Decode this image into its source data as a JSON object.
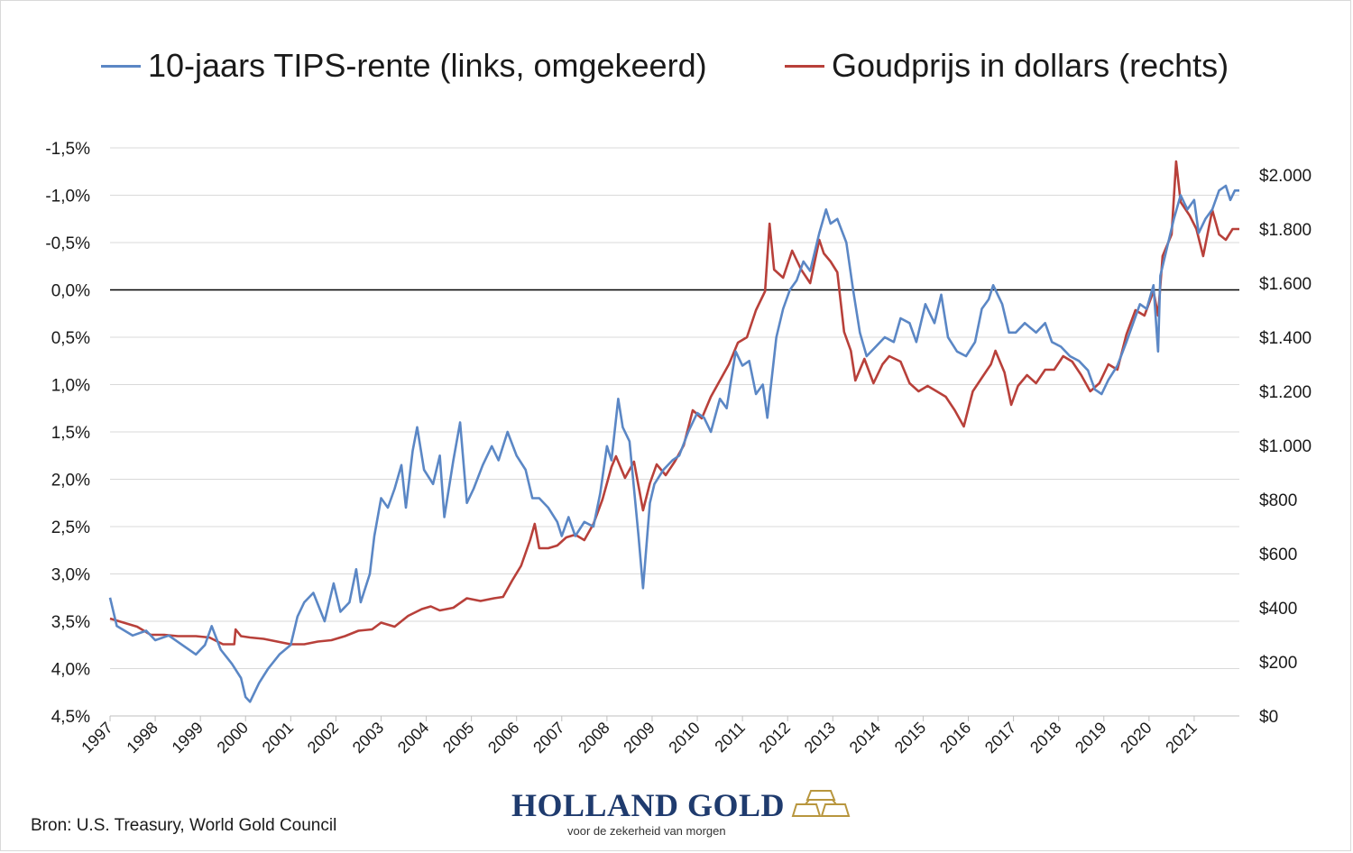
{
  "chart_data": {
    "type": "line",
    "title": "",
    "legend_position": "top",
    "grid": true,
    "series": [
      {
        "name": "10-jaars TIPS-rente (links, omgekeerd)",
        "axis": "left",
        "color": "#5b87c5",
        "points": [
          [
            1997.0,
            3.25
          ],
          [
            1997.15,
            3.55
          ],
          [
            1997.5,
            3.65
          ],
          [
            1997.8,
            3.6
          ],
          [
            1998.0,
            3.7
          ],
          [
            1998.3,
            3.65
          ],
          [
            1998.6,
            3.75
          ],
          [
            1998.9,
            3.85
          ],
          [
            1999.1,
            3.75
          ],
          [
            1999.25,
            3.55
          ],
          [
            1999.45,
            3.8
          ],
          [
            1999.7,
            3.95
          ],
          [
            1999.9,
            4.1
          ],
          [
            2000.0,
            4.3
          ],
          [
            2000.1,
            4.35
          ],
          [
            2000.3,
            4.15
          ],
          [
            2000.5,
            4.0
          ],
          [
            2000.75,
            3.85
          ],
          [
            2001.0,
            3.75
          ],
          [
            2001.15,
            3.45
          ],
          [
            2001.3,
            3.3
          ],
          [
            2001.5,
            3.2
          ],
          [
            2001.75,
            3.5
          ],
          [
            2001.95,
            3.1
          ],
          [
            2002.1,
            3.4
          ],
          [
            2002.3,
            3.3
          ],
          [
            2002.45,
            2.95
          ],
          [
            2002.55,
            3.3
          ],
          [
            2002.75,
            3.0
          ],
          [
            2002.85,
            2.6
          ],
          [
            2003.0,
            2.2
          ],
          [
            2003.15,
            2.3
          ],
          [
            2003.3,
            2.1
          ],
          [
            2003.45,
            1.85
          ],
          [
            2003.55,
            2.3
          ],
          [
            2003.7,
            1.7
          ],
          [
            2003.8,
            1.45
          ],
          [
            2003.95,
            1.9
          ],
          [
            2004.15,
            2.05
          ],
          [
            2004.3,
            1.75
          ],
          [
            2004.4,
            2.4
          ],
          [
            2004.6,
            1.8
          ],
          [
            2004.75,
            1.4
          ],
          [
            2004.9,
            2.25
          ],
          [
            2005.05,
            2.1
          ],
          [
            2005.25,
            1.85
          ],
          [
            2005.45,
            1.65
          ],
          [
            2005.6,
            1.8
          ],
          [
            2005.8,
            1.5
          ],
          [
            2006.0,
            1.75
          ],
          [
            2006.2,
            1.9
          ],
          [
            2006.35,
            2.2
          ],
          [
            2006.5,
            2.2
          ],
          [
            2006.7,
            2.3
          ],
          [
            2006.9,
            2.45
          ],
          [
            2007.0,
            2.6
          ],
          [
            2007.15,
            2.4
          ],
          [
            2007.3,
            2.6
          ],
          [
            2007.5,
            2.45
          ],
          [
            2007.7,
            2.5
          ],
          [
            2007.85,
            2.15
          ],
          [
            2008.0,
            1.65
          ],
          [
            2008.1,
            1.8
          ],
          [
            2008.25,
            1.15
          ],
          [
            2008.35,
            1.45
          ],
          [
            2008.5,
            1.6
          ],
          [
            2008.7,
            2.6
          ],
          [
            2008.8,
            3.15
          ],
          [
            2008.95,
            2.25
          ],
          [
            2009.05,
            2.05
          ],
          [
            2009.25,
            1.9
          ],
          [
            2009.45,
            1.8
          ],
          [
            2009.6,
            1.75
          ],
          [
            2009.8,
            1.5
          ],
          [
            2010.0,
            1.3
          ],
          [
            2010.15,
            1.35
          ],
          [
            2010.3,
            1.5
          ],
          [
            2010.5,
            1.15
          ],
          [
            2010.65,
            1.25
          ],
          [
            2010.85,
            0.65
          ],
          [
            2011.0,
            0.8
          ],
          [
            2011.15,
            0.75
          ],
          [
            2011.3,
            1.1
          ],
          [
            2011.45,
            1.0
          ],
          [
            2011.55,
            1.35
          ],
          [
            2011.75,
            0.5
          ],
          [
            2011.9,
            0.2
          ],
          [
            2012.05,
            0.0
          ],
          [
            2012.2,
            -0.1
          ],
          [
            2012.35,
            -0.3
          ],
          [
            2012.5,
            -0.2
          ],
          [
            2012.7,
            -0.6
          ],
          [
            2012.85,
            -0.85
          ],
          [
            2012.95,
            -0.7
          ],
          [
            2013.1,
            -0.75
          ],
          [
            2013.3,
            -0.5
          ],
          [
            2013.45,
            0.0
          ],
          [
            2013.6,
            0.45
          ],
          [
            2013.75,
            0.7
          ],
          [
            2013.95,
            0.6
          ],
          [
            2014.15,
            0.5
          ],
          [
            2014.35,
            0.55
          ],
          [
            2014.5,
            0.3
          ],
          [
            2014.7,
            0.35
          ],
          [
            2014.85,
            0.55
          ],
          [
            2015.05,
            0.15
          ],
          [
            2015.25,
            0.35
          ],
          [
            2015.4,
            0.05
          ],
          [
            2015.55,
            0.5
          ],
          [
            2015.75,
            0.65
          ],
          [
            2015.95,
            0.7
          ],
          [
            2016.15,
            0.55
          ],
          [
            2016.3,
            0.2
          ],
          [
            2016.45,
            0.1
          ],
          [
            2016.55,
            -0.05
          ],
          [
            2016.75,
            0.15
          ],
          [
            2016.9,
            0.45
          ],
          [
            2017.05,
            0.45
          ],
          [
            2017.25,
            0.35
          ],
          [
            2017.5,
            0.45
          ],
          [
            2017.7,
            0.35
          ],
          [
            2017.85,
            0.55
          ],
          [
            2018.05,
            0.6
          ],
          [
            2018.25,
            0.7
          ],
          [
            2018.45,
            0.75
          ],
          [
            2018.65,
            0.85
          ],
          [
            2018.8,
            1.05
          ],
          [
            2018.95,
            1.1
          ],
          [
            2019.1,
            0.95
          ],
          [
            2019.3,
            0.8
          ],
          [
            2019.5,
            0.55
          ],
          [
            2019.65,
            0.35
          ],
          [
            2019.8,
            0.15
          ],
          [
            2019.95,
            0.2
          ],
          [
            2020.1,
            -0.05
          ],
          [
            2020.2,
            0.65
          ],
          [
            2020.25,
            -0.15
          ],
          [
            2020.4,
            -0.45
          ],
          [
            2020.55,
            -0.75
          ],
          [
            2020.7,
            -1.0
          ],
          [
            2020.85,
            -0.85
          ],
          [
            2021.0,
            -0.95
          ],
          [
            2021.1,
            -0.6
          ],
          [
            2021.25,
            -0.75
          ],
          [
            2021.4,
            -0.85
          ],
          [
            2021.55,
            -1.05
          ],
          [
            2021.7,
            -1.1
          ],
          [
            2021.8,
            -0.95
          ],
          [
            2021.9,
            -1.05
          ],
          [
            2022.0,
            -1.05
          ]
        ]
      },
      {
        "name": "Goudprijs in dollars (rechts)",
        "axis": "right",
        "color": "#b8403a",
        "points": [
          [
            1997.0,
            360
          ],
          [
            1997.3,
            345
          ],
          [
            1997.6,
            330
          ],
          [
            1997.9,
            300
          ],
          [
            1998.2,
            300
          ],
          [
            1998.5,
            295
          ],
          [
            1998.9,
            295
          ],
          [
            1999.2,
            290
          ],
          [
            1999.5,
            265
          ],
          [
            1999.75,
            265
          ],
          [
            1999.78,
            320
          ],
          [
            1999.9,
            295
          ],
          [
            2000.1,
            290
          ],
          [
            2000.4,
            285
          ],
          [
            2000.7,
            275
          ],
          [
            2001.0,
            265
          ],
          [
            2001.3,
            265
          ],
          [
            2001.6,
            275
          ],
          [
            2001.9,
            280
          ],
          [
            2002.2,
            295
          ],
          [
            2002.5,
            315
          ],
          [
            2002.8,
            320
          ],
          [
            2003.0,
            345
          ],
          [
            2003.3,
            330
          ],
          [
            2003.6,
            370
          ],
          [
            2003.9,
            395
          ],
          [
            2004.1,
            405
          ],
          [
            2004.3,
            390
          ],
          [
            2004.6,
            400
          ],
          [
            2004.9,
            435
          ],
          [
            2005.2,
            425
          ],
          [
            2005.5,
            435
          ],
          [
            2005.7,
            440
          ],
          [
            2005.9,
            500
          ],
          [
            2006.1,
            555
          ],
          [
            2006.3,
            650
          ],
          [
            2006.4,
            710
          ],
          [
            2006.5,
            620
          ],
          [
            2006.7,
            620
          ],
          [
            2006.9,
            630
          ],
          [
            2007.1,
            660
          ],
          [
            2007.3,
            670
          ],
          [
            2007.5,
            650
          ],
          [
            2007.7,
            710
          ],
          [
            2007.9,
            800
          ],
          [
            2008.1,
            920
          ],
          [
            2008.2,
            960
          ],
          [
            2008.4,
            880
          ],
          [
            2008.6,
            940
          ],
          [
            2008.8,
            760
          ],
          [
            2008.95,
            860
          ],
          [
            2009.1,
            930
          ],
          [
            2009.3,
            890
          ],
          [
            2009.5,
            940
          ],
          [
            2009.7,
            1000
          ],
          [
            2009.9,
            1130
          ],
          [
            2010.1,
            1100
          ],
          [
            2010.3,
            1180
          ],
          [
            2010.5,
            1240
          ],
          [
            2010.7,
            1300
          ],
          [
            2010.9,
            1380
          ],
          [
            2011.1,
            1400
          ],
          [
            2011.3,
            1500
          ],
          [
            2011.5,
            1570
          ],
          [
            2011.6,
            1820
          ],
          [
            2011.7,
            1650
          ],
          [
            2011.9,
            1620
          ],
          [
            2012.1,
            1720
          ],
          [
            2012.3,
            1650
          ],
          [
            2012.5,
            1600
          ],
          [
            2012.7,
            1760
          ],
          [
            2012.8,
            1710
          ],
          [
            2012.95,
            1680
          ],
          [
            2013.1,
            1640
          ],
          [
            2013.25,
            1420
          ],
          [
            2013.4,
            1350
          ],
          [
            2013.5,
            1240
          ],
          [
            2013.7,
            1320
          ],
          [
            2013.9,
            1230
          ],
          [
            2014.1,
            1300
          ],
          [
            2014.25,
            1330
          ],
          [
            2014.5,
            1310
          ],
          [
            2014.7,
            1230
          ],
          [
            2014.9,
            1200
          ],
          [
            2015.1,
            1220
          ],
          [
            2015.3,
            1200
          ],
          [
            2015.5,
            1180
          ],
          [
            2015.7,
            1130
          ],
          [
            2015.9,
            1070
          ],
          [
            2016.1,
            1200
          ],
          [
            2016.3,
            1250
          ],
          [
            2016.5,
            1300
          ],
          [
            2016.6,
            1350
          ],
          [
            2016.8,
            1270
          ],
          [
            2016.95,
            1150
          ],
          [
            2017.1,
            1220
          ],
          [
            2017.3,
            1260
          ],
          [
            2017.5,
            1230
          ],
          [
            2017.7,
            1280
          ],
          [
            2017.9,
            1280
          ],
          [
            2018.1,
            1330
          ],
          [
            2018.3,
            1310
          ],
          [
            2018.5,
            1260
          ],
          [
            2018.7,
            1200
          ],
          [
            2018.9,
            1230
          ],
          [
            2019.1,
            1300
          ],
          [
            2019.3,
            1280
          ],
          [
            2019.5,
            1410
          ],
          [
            2019.7,
            1500
          ],
          [
            2019.9,
            1480
          ],
          [
            2020.1,
            1570
          ],
          [
            2020.2,
            1480
          ],
          [
            2020.3,
            1700
          ],
          [
            2020.5,
            1780
          ],
          [
            2020.6,
            2050
          ],
          [
            2020.7,
            1900
          ],
          [
            2020.9,
            1850
          ],
          [
            2021.05,
            1800
          ],
          [
            2021.2,
            1700
          ],
          [
            2021.4,
            1870
          ],
          [
            2021.55,
            1780
          ],
          [
            2021.7,
            1760
          ],
          [
            2021.85,
            1800
          ],
          [
            2022.0,
            1800
          ]
        ]
      }
    ],
    "left_axis": {
      "reversed": true,
      "ylim": [
        -1.5,
        4.5
      ],
      "ticks": [
        -1.5,
        -1.0,
        -0.5,
        0.0,
        0.5,
        1.0,
        1.5,
        2.0,
        2.5,
        3.0,
        3.5,
        4.0,
        4.5
      ],
      "tick_labels": [
        "-1,5%",
        "-1,0%",
        "-0,5%",
        "0,0%",
        "0,5%",
        "1,0%",
        "1,5%",
        "2,0%",
        "2,5%",
        "3,0%",
        "3,5%",
        "4,0%",
        "4,5%"
      ]
    },
    "right_axis": {
      "ylim": [
        0,
        2100
      ],
      "ticks": [
        0,
        200,
        400,
        600,
        800,
        1000,
        1200,
        1400,
        1600,
        1800,
        2000
      ],
      "tick_labels": [
        "$0",
        "$200",
        "$400",
        "$600",
        "$800",
        "$1.000",
        "$1.200",
        "$1.400",
        "$1.600",
        "$1.800",
        "$2.000"
      ]
    },
    "x_axis": {
      "xlim": [
        1997,
        2022
      ],
      "ticks": [
        1997,
        1998,
        1999,
        2000,
        2001,
        2002,
        2003,
        2004,
        2005,
        2006,
        2007,
        2008,
        2009,
        2010,
        2011,
        2012,
        2013,
        2014,
        2015,
        2016,
        2017,
        2018,
        2019,
        2020,
        2021
      ],
      "tick_labels": [
        "1997",
        "1998",
        "1999",
        "2000",
        "2001",
        "2002",
        "2003",
        "2004",
        "2005",
        "2006",
        "2007",
        "2008",
        "2009",
        "2010",
        "2011",
        "2012",
        "2013",
        "2014",
        "2015",
        "2016",
        "2017",
        "2018",
        "2019",
        "2020",
        "2021"
      ]
    }
  },
  "legend": {
    "tips_label": "10-jaars TIPS-rente (links, omgekeerd)",
    "gold_label": "Goudprijs in dollars (rechts)"
  },
  "source": "Bron: U.S. Treasury, World Gold Council",
  "logo": {
    "name": "HOLLAND GOLD",
    "tagline": "voor de zekerheid van morgen"
  }
}
